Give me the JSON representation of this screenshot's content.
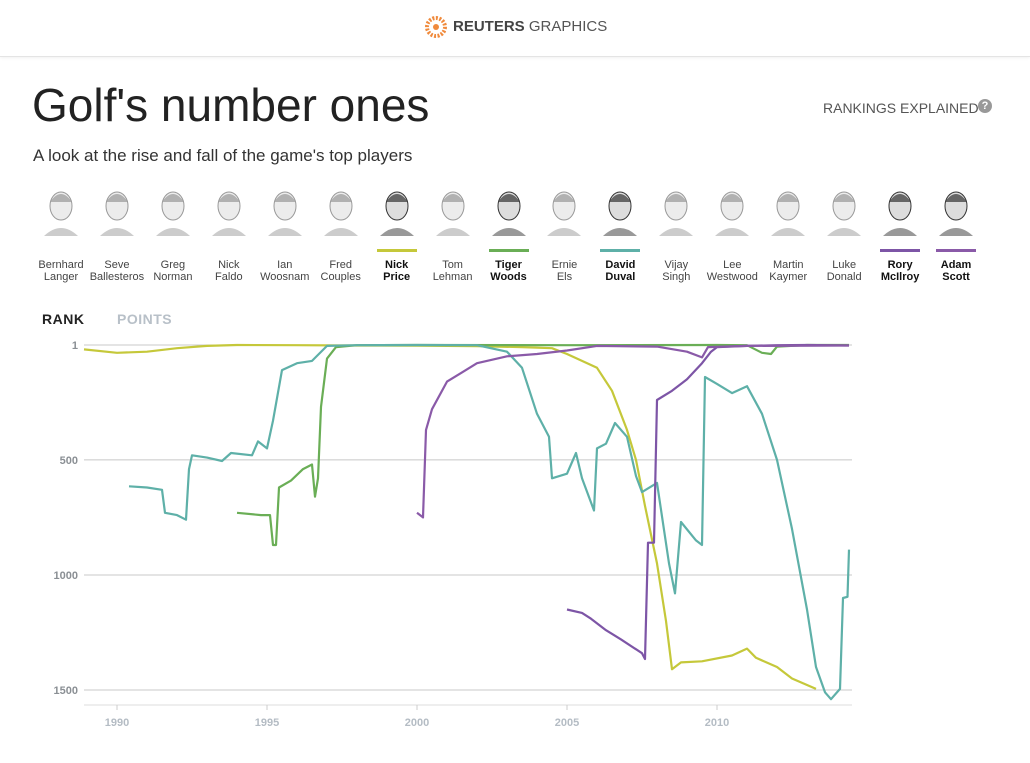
{
  "header": {
    "brand": "REUTERS",
    "section": "GRAPHICS"
  },
  "title": "Golf's number ones",
  "subtitle": "A look at the rise and fall of the game's top players",
  "rankings_explained": "RANKINGS EXPLAINED",
  "players": [
    {
      "first": "Bernhard",
      "last": "Langer"
    },
    {
      "first": "Seve",
      "last": "Ballesteros"
    },
    {
      "first": "Greg",
      "last": "Norman"
    },
    {
      "first": "Nick",
      "last": "Faldo"
    },
    {
      "first": "Ian",
      "last": "Woosnam"
    },
    {
      "first": "Fred",
      "last": "Couples"
    },
    {
      "first": "Nick",
      "last": "Price",
      "color": "#c5c83a"
    },
    {
      "first": "Tom",
      "last": "Lehman"
    },
    {
      "first": "Tiger",
      "last": "Woods",
      "color": "#6aae56"
    },
    {
      "first": "Ernie",
      "last": "Els"
    },
    {
      "first": "David",
      "last": "Duval",
      "color": "#5eb0a8"
    },
    {
      "first": "Vijay",
      "last": "Singh"
    },
    {
      "first": "Lee",
      "last": "Westwood"
    },
    {
      "first": "Martin",
      "last": "Kaymer"
    },
    {
      "first": "Luke",
      "last": "Donald"
    },
    {
      "first": "Rory",
      "last": "McIlroy",
      "color": "#7d55a6"
    },
    {
      "first": "Adam",
      "last": "Scott",
      "color": "#8a5aa8"
    }
  ],
  "tabs": [
    "RANK",
    "POINTS"
  ],
  "chart_data": {
    "type": "line",
    "xlim": [
      1988.9,
      2014.5
    ],
    "xticks": [
      1990,
      1995,
      2000,
      2005,
      2010
    ],
    "ylim": [
      1,
      1565
    ],
    "yticks": [
      1,
      500,
      1000,
      1500
    ],
    "y_inverted": true,
    "grid": true,
    "series": [
      {
        "color": "#c5c83a",
        "x": [
          1988.9,
          1990,
          1991,
          1992,
          1993,
          1994,
          1996,
          1998,
          2000,
          2002,
          2003.5,
          2004.5,
          2005,
          2006,
          2006.5,
          2007,
          2007.3,
          2007.6,
          2008,
          2008.3,
          2008.5,
          2008.8,
          2009.5,
          2010.5,
          2011,
          2011.3,
          2012,
          2012.5,
          2013.3
        ],
        "values": [
          20,
          35,
          30,
          15,
          5,
          1,
          2,
          3,
          4,
          6,
          10,
          15,
          40,
          100,
          200,
          370,
          500,
          700,
          950,
          1200,
          1410,
          1380,
          1375,
          1350,
          1320,
          1360,
          1400,
          1450,
          1495
        ]
      },
      {
        "color": "#6aae56",
        "x": [
          1994,
          1994.8,
          1995.1,
          1995.2,
          1995.3,
          1995.4,
          1995.8,
          1996.2,
          1996.5,
          1996.6,
          1996.7,
          1996.8,
          1997,
          1997.3,
          1998,
          2000,
          2005,
          2010,
          2011,
          2011.5,
          2011.8,
          2012,
          2013,
          2014.4
        ],
        "values": [
          730,
          740,
          740,
          870,
          870,
          620,
          590,
          540,
          520,
          660,
          580,
          270,
          60,
          10,
          2,
          1,
          2,
          1,
          2,
          35,
          40,
          8,
          1,
          1
        ]
      },
      {
        "color": "#5eb0a8",
        "x": [
          1990.4,
          1991,
          1991.5,
          1991.6,
          1992,
          1992.3,
          1992.4,
          1992.5,
          1993,
          1993.5,
          1993.8,
          1994.5,
          1994.7,
          1995,
          1995.2,
          1995.5,
          1996,
          1996.5,
          1997,
          1998,
          2000,
          2002,
          2003,
          2003.5,
          2004,
          2004.4,
          2004.5,
          2005,
          2005.3,
          2005.5,
          2005.9,
          2006,
          2006.3,
          2006.6,
          2007,
          2007.3,
          2007.5,
          2008,
          2008.4,
          2008.6,
          2008.8,
          2009.3,
          2009.5,
          2009.6,
          2010,
          2010.5,
          2011,
          2011.5,
          2012,
          2012.5,
          2013,
          2013.3,
          2013.6,
          2013.8,
          2014.1,
          2014.2,
          2014.35,
          2014.4
        ],
        "values": [
          615,
          620,
          630,
          730,
          740,
          760,
          540,
          480,
          490,
          505,
          470,
          480,
          420,
          450,
          330,
          110,
          80,
          70,
          5,
          2,
          1,
          2,
          30,
          100,
          300,
          400,
          580,
          560,
          470,
          580,
          720,
          450,
          430,
          340,
          400,
          570,
          640,
          600,
          950,
          1080,
          770,
          850,
          870,
          140,
          170,
          210,
          180,
          300,
          500,
          800,
          1150,
          1400,
          1510,
          1540,
          1495,
          1100,
          1095,
          890
        ]
      },
      {
        "color": "#7d55a6",
        "x": [
          2005,
          2005.5,
          2005.8,
          2006.3,
          2006.8,
          2007.5,
          2007.6,
          2007.7,
          2007.9,
          2008,
          2008.5,
          2009,
          2009.5,
          2009.8,
          2010,
          2011,
          2012,
          2013,
          2014.4
        ],
        "values": [
          1150,
          1165,
          1190,
          1240,
          1280,
          1340,
          1365,
          860,
          860,
          240,
          200,
          150,
          80,
          30,
          10,
          5,
          2,
          1,
          3
        ]
      },
      {
        "color": "#8a5aa8",
        "x": [
          2000,
          2000.2,
          2000.3,
          2000.5,
          2001,
          2001.5,
          2002,
          2003,
          2004,
          2005,
          2006,
          2008,
          2009,
          2009.5,
          2009.7,
          2011,
          2014.4
        ],
        "values": [
          730,
          750,
          370,
          280,
          160,
          120,
          80,
          50,
          40,
          25,
          5,
          8,
          30,
          55,
          10,
          5,
          3
        ]
      }
    ]
  }
}
